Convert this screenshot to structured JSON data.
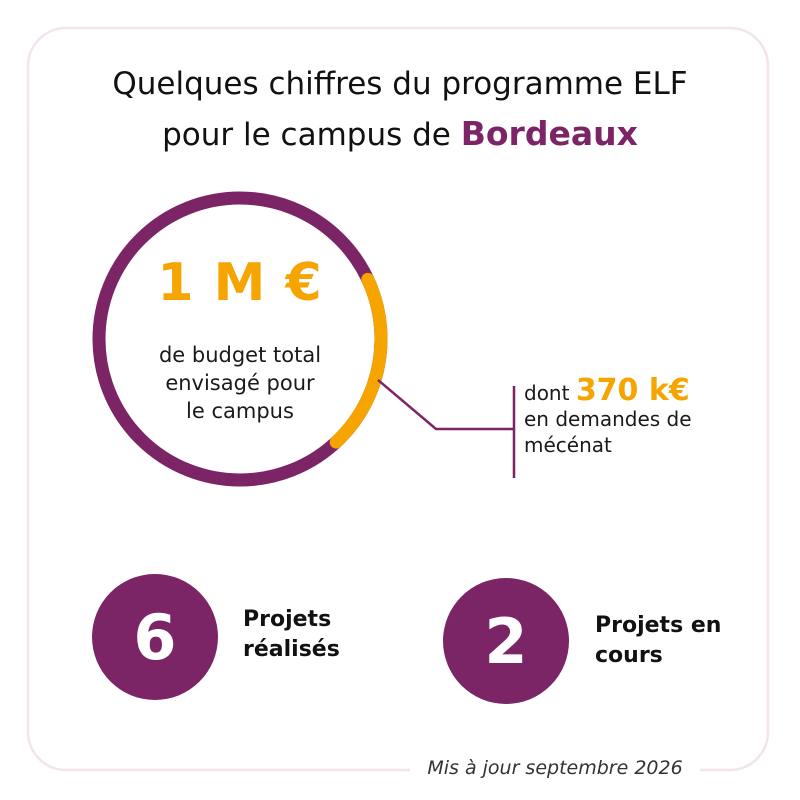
{
  "title": {
    "line1": "Quelques chiffres du programme ELF",
    "line2_prefix": "pour le campus de ",
    "line2_highlight": "Bordeaux"
  },
  "budget": {
    "value": "1 M €",
    "description_lines": [
      "de budget total",
      "envisagé pour",
      "le campus"
    ],
    "share_fraction": 0.2
  },
  "sub_budget": {
    "prefix": "dont ",
    "value": "370 k€",
    "description_lines": [
      "en demandes de",
      "mécénat"
    ]
  },
  "stats": [
    {
      "value": "6",
      "label_lines": [
        "Projets",
        "réalisés"
      ]
    },
    {
      "value": "2",
      "label_lines": [
        "Projets en",
        "cours"
      ]
    }
  ],
  "footer": "Mis à jour septembre 2026",
  "colors": {
    "accent_purple": "#7b2466",
    "accent_orange": "#f5a400",
    "frame_pink": "#f3e3ee"
  }
}
